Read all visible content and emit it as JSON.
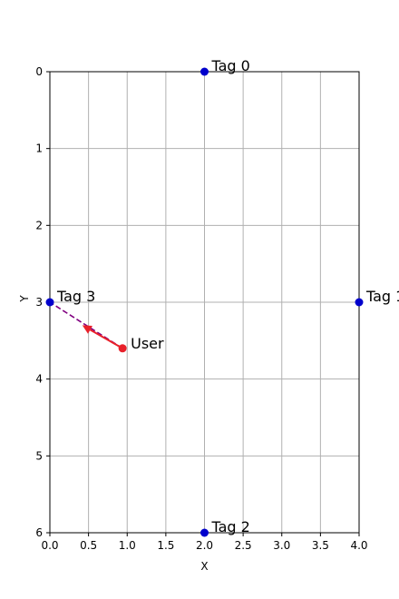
{
  "chart_data": {
    "type": "scatter",
    "xlabel": "X",
    "ylabel": "Y",
    "xlim": [
      0,
      4
    ],
    "ylim": [
      6,
      0
    ],
    "y_inverted": true,
    "grid": true,
    "xticks": [
      "0.0",
      "0.5",
      "1.0",
      "1.5",
      "2.0",
      "2.5",
      "3.0",
      "3.5",
      "4.0"
    ],
    "yticks": [
      "0",
      "1",
      "2",
      "3",
      "4",
      "5",
      "6"
    ],
    "tags": [
      {
        "label": "Tag 0",
        "x": 2,
        "y": 0
      },
      {
        "label": "Tag 1",
        "x": 4,
        "y": 3
      },
      {
        "label": "Tag 2",
        "x": 2,
        "y": 6
      },
      {
        "label": "Tag 3",
        "x": 0,
        "y": 3
      }
    ],
    "user": {
      "label": "User",
      "x": 0.94,
      "y": 3.6
    },
    "direction_line": {
      "from": [
        0.94,
        3.6
      ],
      "to": [
        0,
        3
      ],
      "style": "dashed",
      "color": "#800080"
    },
    "heading_arrow": {
      "from": [
        0.94,
        3.6
      ],
      "to": [
        0.42,
        3.3
      ],
      "color": "#e8202a"
    },
    "colors": {
      "tag": "#0000cc",
      "user": "#e8202a",
      "grid": "#b0b0b0"
    }
  }
}
